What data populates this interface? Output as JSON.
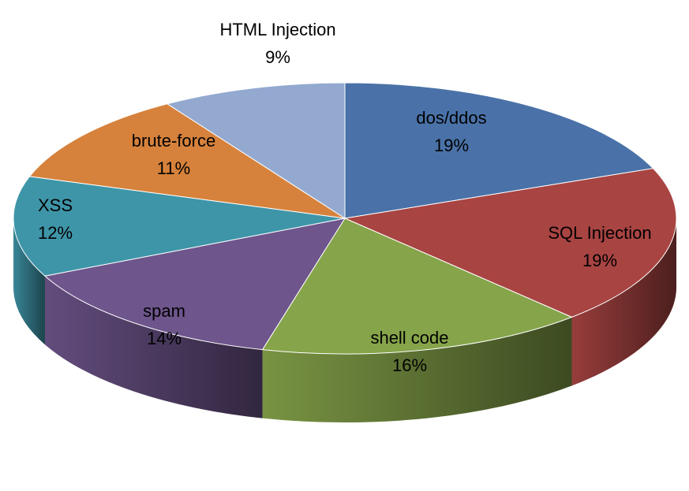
{
  "chart_data": {
    "type": "pie",
    "style": "3d",
    "title": "",
    "slices": [
      {
        "label": "dos/ddos",
        "value": 19,
        "display": "19%",
        "color": "#4a72a8"
      },
      {
        "label": "SQL Injection",
        "value": 19,
        "display": "19%",
        "color": "#a84442"
      },
      {
        "label": "shell code",
        "value": 16,
        "display": "16%",
        "color": "#86a44a"
      },
      {
        "label": "spam",
        "value": 14,
        "display": "14%",
        "color": "#6e558c"
      },
      {
        "label": "XSS",
        "value": 12,
        "display": "12%",
        "color": "#3f95a8"
      },
      {
        "label": "brute-force",
        "value": 11,
        "display": "11%",
        "color": "#d6823c"
      },
      {
        "label": "HTML Injection",
        "value": 9,
        "display": "9%",
        "color": "#93a9d0"
      }
    ]
  }
}
